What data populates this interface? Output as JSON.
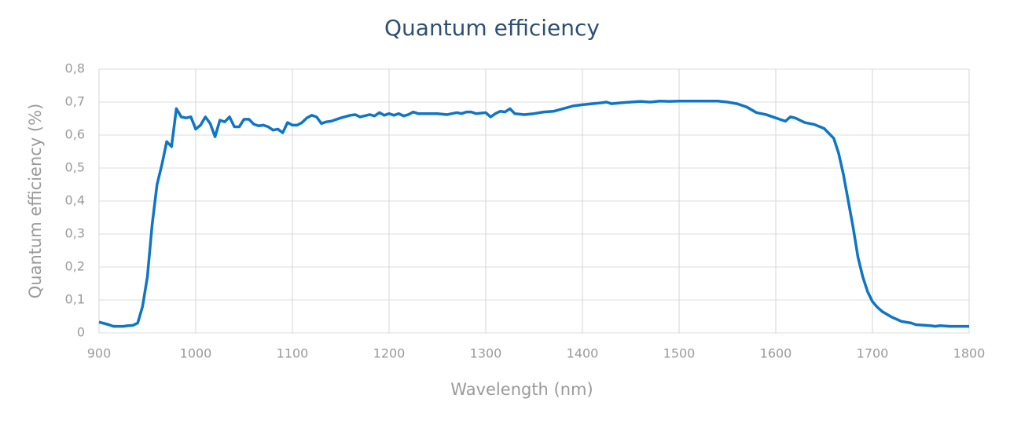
{
  "chart_data": {
    "type": "line",
    "title": "Quantum efficiency",
    "x_label": "Wavelength (nm)",
    "y_label": "Quantum efficiency (%)",
    "xlim": [
      900,
      1800
    ],
    "xticks": [
      900,
      1000,
      1100,
      1200,
      1300,
      1400,
      1500,
      1600,
      1700,
      1800
    ],
    "ylim": [
      0,
      0.8
    ],
    "yticks": [
      0,
      {
        "value": 0.1,
        "label": "0,1"
      },
      {
        "value": 0.2,
        "label": "0,2"
      },
      {
        "value": 0.3,
        "label": "0,3"
      },
      {
        "value": 0.4,
        "label": "0,4"
      },
      {
        "value": 0.5,
        "label": "0,5"
      },
      {
        "value": 0.6,
        "label": "0,6"
      },
      {
        "value": 0.7,
        "label": "0,7"
      },
      {
        "value": 0.8,
        "label": "0,8"
      }
    ],
    "grid": true,
    "color": "#0f75c4",
    "x": [
      900,
      910,
      915,
      925,
      930,
      935,
      940,
      945,
      950,
      955,
      960,
      965,
      970,
      975,
      980,
      985,
      990,
      995,
      1000,
      1005,
      1010,
      1015,
      1020,
      1025,
      1030,
      1035,
      1040,
      1045,
      1050,
      1055,
      1060,
      1065,
      1070,
      1075,
      1080,
      1085,
      1090,
      1095,
      1100,
      1105,
      1110,
      1115,
      1120,
      1125,
      1130,
      1135,
      1140,
      1150,
      1160,
      1165,
      1170,
      1180,
      1185,
      1190,
      1195,
      1200,
      1205,
      1210,
      1215,
      1220,
      1225,
      1230,
      1250,
      1260,
      1270,
      1275,
      1280,
      1285,
      1290,
      1300,
      1305,
      1310,
      1315,
      1320,
      1325,
      1330,
      1340,
      1350,
      1360,
      1370,
      1380,
      1390,
      1400,
      1410,
      1420,
      1425,
      1430,
      1440,
      1450,
      1460,
      1470,
      1480,
      1490,
      1500,
      1510,
      1520,
      1530,
      1540,
      1550,
      1560,
      1570,
      1580,
      1590,
      1600,
      1610,
      1615,
      1620,
      1630,
      1640,
      1650,
      1655,
      1660,
      1665,
      1670,
      1675,
      1680,
      1685,
      1690,
      1695,
      1700,
      1705,
      1710,
      1720,
      1730,
      1740,
      1745,
      1760,
      1765,
      1770,
      1780,
      1800
    ],
    "values": [
      0.033,
      0.025,
      0.02,
      0.02,
      0.022,
      0.023,
      0.03,
      0.08,
      0.17,
      0.33,
      0.45,
      0.51,
      0.58,
      0.565,
      0.68,
      0.655,
      0.652,
      0.655,
      0.618,
      0.63,
      0.655,
      0.635,
      0.595,
      0.645,
      0.64,
      0.655,
      0.625,
      0.625,
      0.648,
      0.648,
      0.633,
      0.628,
      0.63,
      0.625,
      0.615,
      0.618,
      0.607,
      0.638,
      0.63,
      0.63,
      0.638,
      0.652,
      0.66,
      0.655,
      0.635,
      0.64,
      0.642,
      0.652,
      0.66,
      0.662,
      0.655,
      0.662,
      0.658,
      0.668,
      0.66,
      0.665,
      0.66,
      0.665,
      0.658,
      0.662,
      0.67,
      0.665,
      0.665,
      0.662,
      0.668,
      0.665,
      0.67,
      0.67,
      0.665,
      0.668,
      0.655,
      0.665,
      0.672,
      0.67,
      0.68,
      0.665,
      0.662,
      0.665,
      0.67,
      0.672,
      0.68,
      0.688,
      0.692,
      0.695,
      0.698,
      0.7,
      0.695,
      0.698,
      0.7,
      0.702,
      0.7,
      0.703,
      0.702,
      0.703,
      0.703,
      0.703,
      0.703,
      0.703,
      0.7,
      0.695,
      0.685,
      0.668,
      0.662,
      0.652,
      0.642,
      0.655,
      0.652,
      0.638,
      0.632,
      0.62,
      0.605,
      0.59,
      0.545,
      0.48,
      0.4,
      0.32,
      0.23,
      0.17,
      0.125,
      0.095,
      0.078,
      0.065,
      0.048,
      0.035,
      0.03,
      0.025,
      0.022,
      0.02,
      0.022,
      0.02,
      0.02
    ]
  }
}
